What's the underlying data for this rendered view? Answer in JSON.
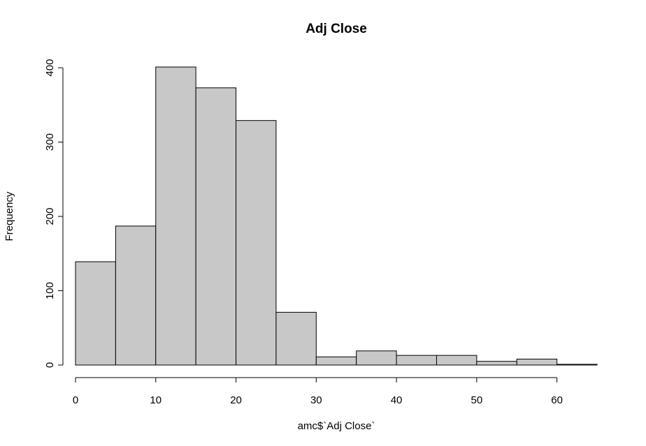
{
  "chart_data": {
    "type": "bar",
    "subtype": "histogram",
    "title": "Adj Close",
    "xlabel": "amc$`Adj Close`",
    "ylabel": "Frequency",
    "bins": [
      {
        "from": 0,
        "to": 5,
        "count": 139
      },
      {
        "from": 5,
        "to": 10,
        "count": 187
      },
      {
        "from": 10,
        "to": 15,
        "count": 401
      },
      {
        "from": 15,
        "to": 20,
        "count": 373
      },
      {
        "from": 20,
        "to": 25,
        "count": 329
      },
      {
        "from": 25,
        "to": 30,
        "count": 71
      },
      {
        "from": 30,
        "to": 35,
        "count": 11
      },
      {
        "from": 35,
        "to": 40,
        "count": 19
      },
      {
        "from": 40,
        "to": 45,
        "count": 13
      },
      {
        "from": 45,
        "to": 50,
        "count": 13
      },
      {
        "from": 50,
        "to": 55,
        "count": 5
      },
      {
        "from": 55,
        "to": 60,
        "count": 8
      },
      {
        "from": 60,
        "to": 65,
        "count": 1
      }
    ],
    "xticks": [
      0,
      10,
      20,
      30,
      40,
      50,
      60
    ],
    "yticks": [
      0,
      100,
      200,
      300,
      400
    ],
    "xlim": [
      0,
      65
    ],
    "ylim": [
      0,
      401
    ],
    "bar_color": "#c8c8c8",
    "edge_color": "#000000",
    "grid": false,
    "legend": "none"
  }
}
